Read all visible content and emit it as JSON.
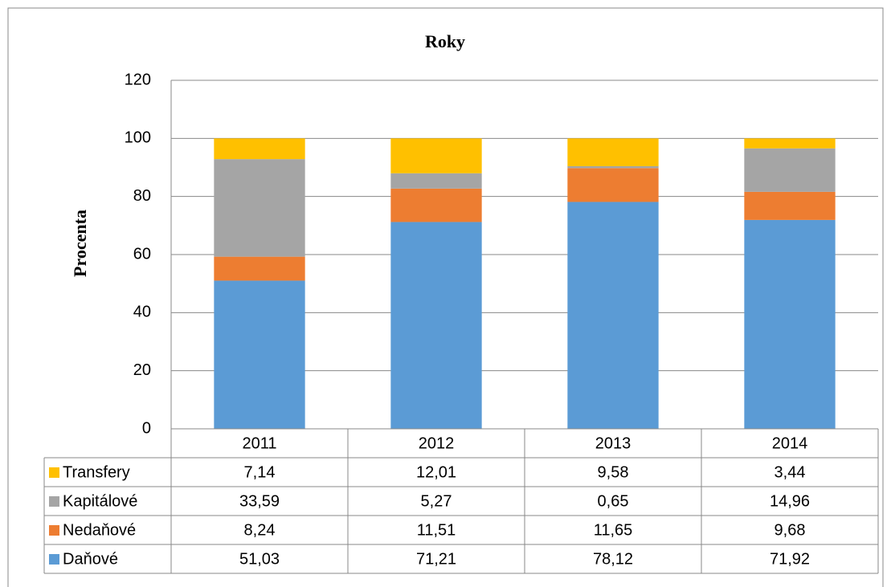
{
  "chart_data": {
    "type": "stacked_bar",
    "title": "Roky",
    "ylabel": "Procenta",
    "categories": [
      "2011",
      "2012",
      "2013",
      "2014"
    ],
    "series": [
      {
        "name": "Daňové",
        "color": "#5b9bd5",
        "values": [
          51.03,
          71.21,
          78.12,
          71.92
        ],
        "value_labels": [
          "51,03",
          "71,21",
          "78,12",
          "71,92"
        ]
      },
      {
        "name": "Nedaňové",
        "color": "#ed7d31",
        "values": [
          8.24,
          11.51,
          11.65,
          9.68
        ],
        "value_labels": [
          "8,24",
          "11,51",
          "11,65",
          "9,68"
        ]
      },
      {
        "name": "Kapitálové",
        "color": "#a5a5a5",
        "values": [
          33.59,
          5.27,
          0.65,
          14.96
        ],
        "value_labels": [
          "33,59",
          "5,27",
          "0,65",
          "14,96"
        ]
      },
      {
        "name": "Transfery",
        "color": "#ffc000",
        "values": [
          7.14,
          12.01,
          9.58,
          3.44
        ],
        "value_labels": [
          "7,14",
          "12,01",
          "9,58",
          "3,44"
        ]
      }
    ],
    "ylim": [
      0,
      120
    ],
    "yticks": [
      0,
      20,
      40,
      60,
      80,
      100,
      120
    ],
    "grid": true
  }
}
